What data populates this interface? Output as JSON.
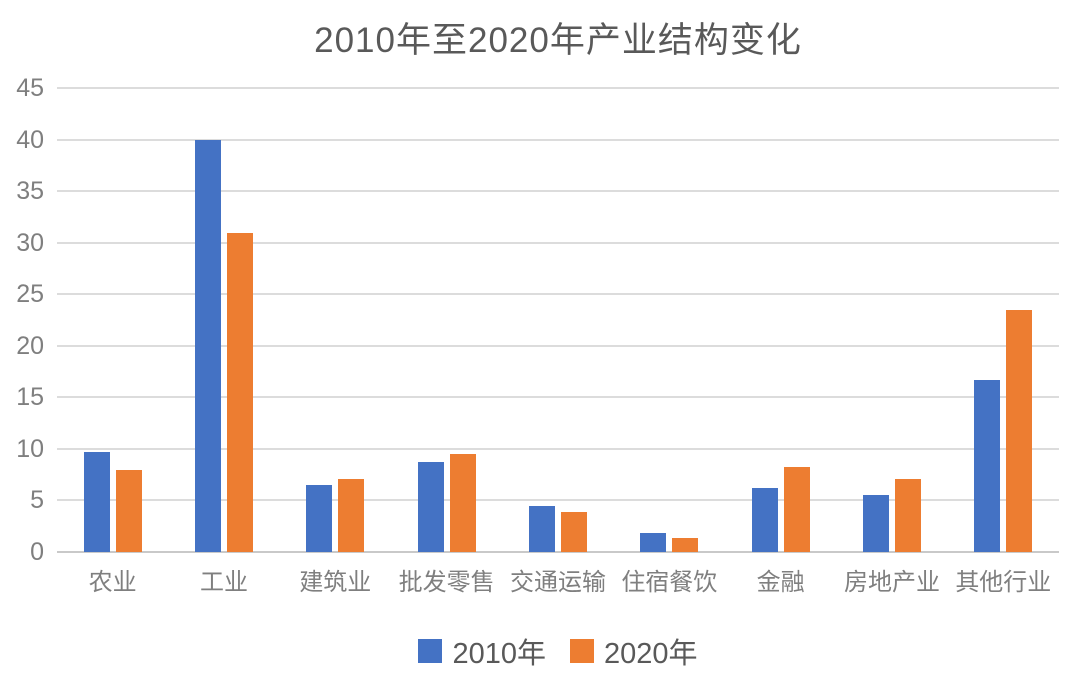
{
  "chart_data": {
    "type": "bar",
    "title": "2010年至2020年产业结构变化",
    "categories": [
      "农业",
      "工业",
      "建筑业",
      "批发零售",
      "交通运输",
      "住宿餐饮",
      "金融",
      "房地产业",
      "其他行业"
    ],
    "series": [
      {
        "name": "2010年",
        "color": "#4472C4",
        "values": [
          9.7,
          40,
          6.5,
          8.7,
          4.5,
          1.8,
          6.2,
          5.5,
          16.7
        ]
      },
      {
        "name": "2020年",
        "color": "#ED7D31",
        "values": [
          8.0,
          30.9,
          7.1,
          9.5,
          3.9,
          1.4,
          8.2,
          7.1,
          23.5
        ]
      }
    ],
    "ylim": [
      0,
      45
    ],
    "yticks": [
      45,
      40,
      35,
      30,
      25,
      20,
      15,
      10,
      5,
      0
    ],
    "grid": true,
    "legend_position": "bottom",
    "colors": {
      "gridline": "#DCDCDC",
      "axis_line": "#C9C9C9",
      "title_text": "#595959",
      "tick_text": "#7F7F7F",
      "legend_text": "#595959",
      "background": "#FFFFFF"
    }
  }
}
